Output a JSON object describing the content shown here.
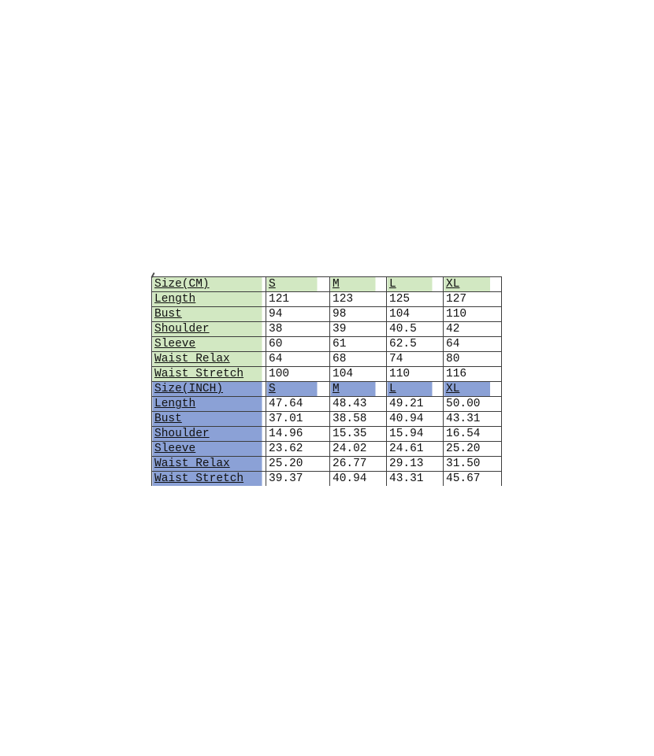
{
  "style": {
    "background": "#ffffff",
    "cm_fill": "#d2e8c2",
    "inch_fill": "#8ba1d6",
    "border_color": "#3d3d3d",
    "text_color": "#111111"
  },
  "chart_data": {
    "type": "table",
    "columns": [
      "Size",
      "S",
      "M",
      "L",
      "XL"
    ],
    "sections": [
      {
        "unit": "CM",
        "header_label": "Size(CM)",
        "size_headers": [
          "S",
          "M",
          "L",
          "XL"
        ],
        "rows": [
          {
            "label": "Length",
            "values": [
              "121",
              "123",
              "125",
              "127"
            ]
          },
          {
            "label": "Bust",
            "values": [
              "94",
              "98",
              "104",
              "110"
            ]
          },
          {
            "label": "Shoulder",
            "values": [
              "38",
              "39",
              "40.5",
              "42"
            ]
          },
          {
            "label": "Sleeve",
            "values": [
              "60",
              "61",
              "62.5",
              "64"
            ]
          },
          {
            "label": "Waist Relax",
            "values": [
              "64",
              "68",
              "74",
              "80"
            ]
          },
          {
            "label": "Waist Stretch",
            "values": [
              "100",
              "104",
              "110",
              "116"
            ]
          }
        ]
      },
      {
        "unit": "INCH",
        "header_label": "Size(INCH)",
        "size_headers": [
          "S",
          "M",
          "L",
          "XL"
        ],
        "rows": [
          {
            "label": "Length",
            "values": [
              "47.64",
              "48.43",
              "49.21",
              "50.00"
            ]
          },
          {
            "label": "Bust",
            "values": [
              "37.01",
              "38.58",
              "40.94",
              "43.31"
            ]
          },
          {
            "label": "Shoulder",
            "values": [
              "14.96",
              "15.35",
              "15.94",
              "16.54"
            ]
          },
          {
            "label": "Sleeve",
            "values": [
              "23.62",
              "24.02",
              "24.61",
              "25.20"
            ]
          },
          {
            "label": "Waist Relax",
            "values": [
              "25.20",
              "26.77",
              "29.13",
              "31.50"
            ]
          },
          {
            "label": "Waist Stretch",
            "values": [
              "39.37",
              "40.94",
              "43.31",
              "45.67"
            ]
          }
        ]
      }
    ]
  }
}
